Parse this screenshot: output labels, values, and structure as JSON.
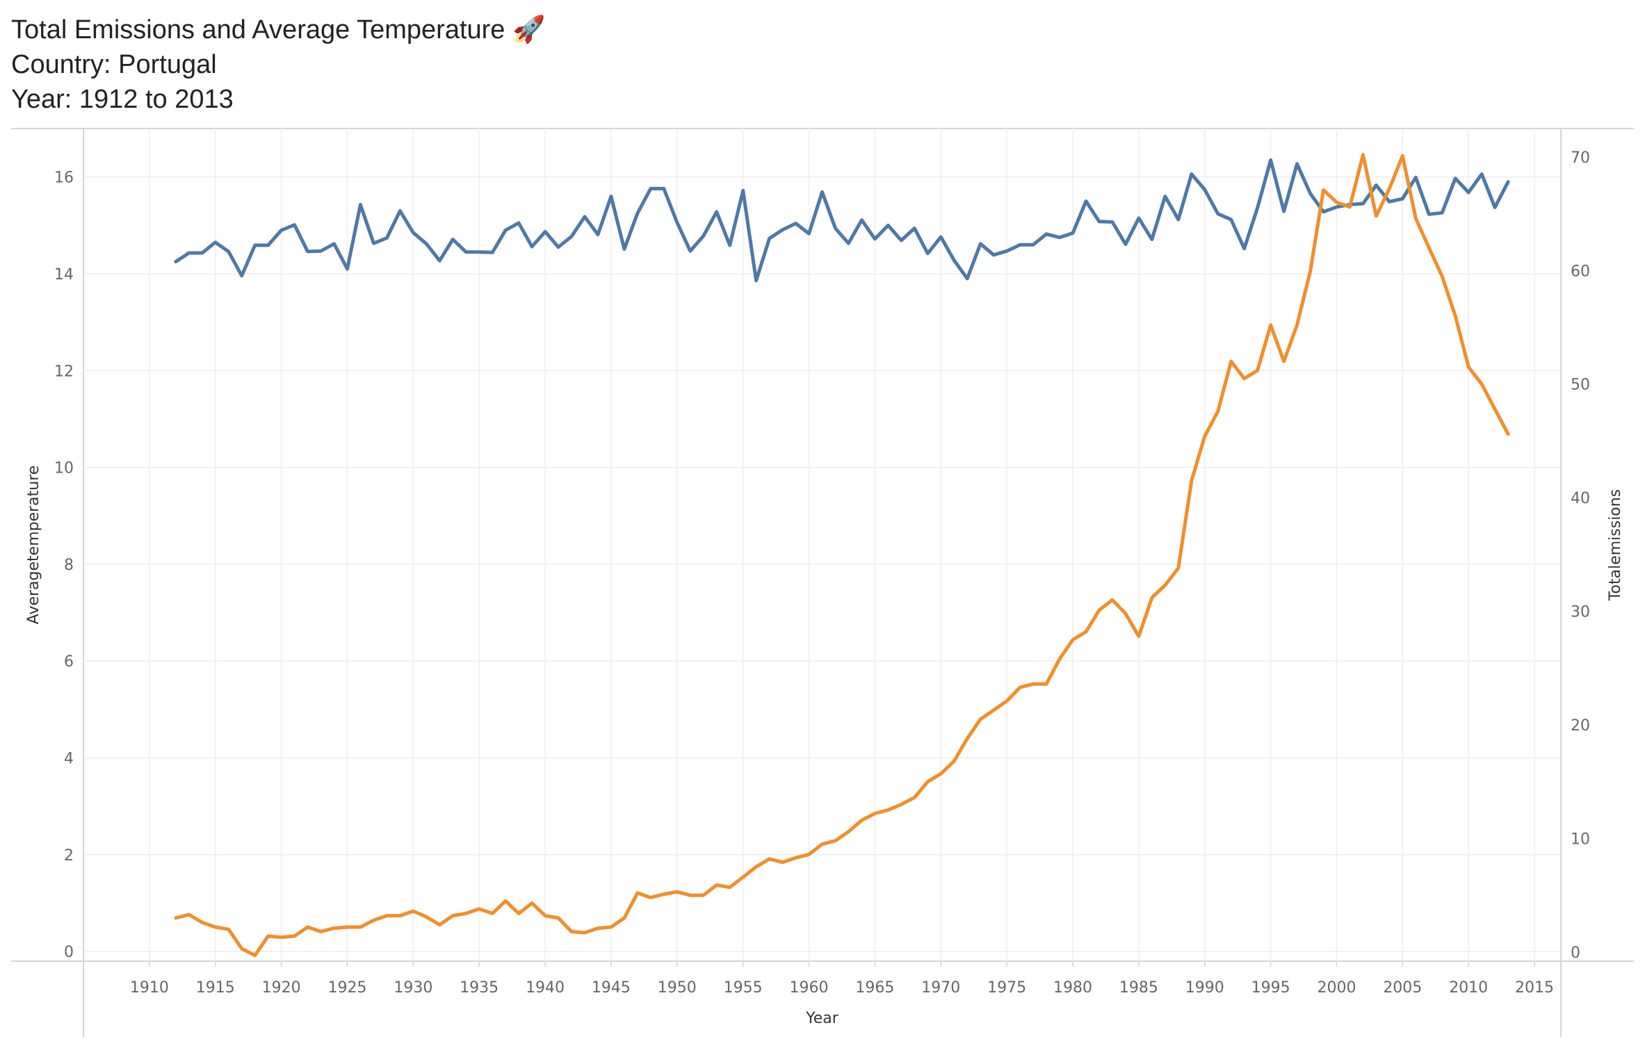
{
  "header": {
    "title": "Total Emissions and Average Temperature 🚀",
    "subtitle_country": "Country: Portugal",
    "subtitle_years": "Year: 1912 to 2013"
  },
  "chart_data": {
    "type": "line",
    "xlabel": "Year",
    "ylabel_left": "Averagetemperature",
    "ylabel_right": "Totalemissions",
    "xlim": [
      1905,
      2017
    ],
    "ylim_left": [
      -0.2,
      17.0
    ],
    "ylim_right": [
      -0.8,
      72.5
    ],
    "x_ticks": [
      1910,
      1915,
      1920,
      1925,
      1930,
      1935,
      1940,
      1945,
      1950,
      1955,
      1960,
      1965,
      1970,
      1975,
      1980,
      1985,
      1990,
      1995,
      2000,
      2005,
      2010,
      2015
    ],
    "y_ticks_left": [
      0,
      2,
      4,
      6,
      8,
      10,
      12,
      14,
      16
    ],
    "y_ticks_right": [
      0,
      10,
      20,
      30,
      40,
      50,
      60,
      70
    ],
    "grid": true,
    "colors": {
      "temperature": "#4e79a7",
      "emissions": "#f28e2b"
    },
    "x": [
      1912,
      1913,
      1914,
      1915,
      1916,
      1917,
      1918,
      1919,
      1920,
      1921,
      1922,
      1923,
      1924,
      1925,
      1926,
      1927,
      1928,
      1929,
      1930,
      1931,
      1932,
      1933,
      1934,
      1935,
      1936,
      1937,
      1938,
      1939,
      1940,
      1941,
      1942,
      1943,
      1944,
      1945,
      1946,
      1947,
      1948,
      1949,
      1950,
      1951,
      1952,
      1953,
      1954,
      1955,
      1956,
      1957,
      1958,
      1959,
      1960,
      1961,
      1962,
      1963,
      1964,
      1965,
      1966,
      1967,
      1968,
      1969,
      1970,
      1971,
      1972,
      1973,
      1974,
      1975,
      1976,
      1977,
      1978,
      1979,
      1980,
      1981,
      1982,
      1983,
      1984,
      1985,
      1986,
      1987,
      1988,
      1989,
      1990,
      1991,
      1992,
      1993,
      1994,
      1995,
      1996,
      1997,
      1998,
      1999,
      2000,
      2001,
      2002,
      2003,
      2004,
      2005,
      2006,
      2007,
      2008,
      2009,
      2010,
      2011,
      2012,
      2013
    ],
    "series": [
      {
        "axis": "left",
        "values": [
          14.25,
          14.43,
          14.43,
          14.65,
          14.46,
          13.96,
          14.59,
          14.59,
          14.9,
          15.01,
          14.46,
          14.47,
          14.62,
          14.1,
          15.43,
          14.63,
          14.74,
          15.3,
          14.85,
          14.62,
          14.27,
          14.71,
          14.45,
          14.45,
          14.44,
          14.9,
          15.05,
          14.56,
          14.87,
          14.55,
          14.77,
          15.18,
          14.81,
          15.6,
          14.51,
          15.25,
          15.76,
          15.76,
          15.06,
          14.47,
          14.78,
          15.28,
          14.59,
          15.72,
          13.86,
          14.73,
          14.91,
          15.04,
          14.83,
          15.69,
          14.94,
          14.63,
          15.11,
          14.72,
          15.0,
          14.69,
          14.94,
          14.42,
          14.76,
          14.28,
          13.9,
          14.62,
          14.39,
          14.47,
          14.6,
          14.6,
          14.82,
          14.75,
          14.84,
          15.5,
          15.08,
          15.07,
          14.61,
          15.15,
          14.71,
          15.6,
          15.12,
          16.06,
          15.74,
          15.24,
          15.12,
          14.52,
          15.36,
          16.35,
          15.29,
          16.27,
          15.66,
          15.28,
          15.38,
          15.43,
          15.45,
          15.83,
          15.49,
          15.55,
          15.99,
          15.23,
          15.26,
          15.97,
          15.68,
          16.06,
          15.37,
          15.9
        ]
      },
      {
        "axis": "right",
        "values": [
          3.0,
          3.3,
          2.6,
          2.2,
          2.0,
          0.3,
          -0.3,
          1.4,
          1.3,
          1.4,
          2.2,
          1.8,
          2.1,
          2.2,
          2.2,
          2.8,
          3.2,
          3.2,
          3.6,
          3.1,
          2.4,
          3.2,
          3.4,
          3.8,
          3.4,
          4.5,
          3.4,
          4.3,
          3.2,
          3.0,
          1.8,
          1.7,
          2.1,
          2.2,
          3.0,
          5.2,
          4.8,
          5.1,
          5.3,
          5.0,
          5.0,
          5.9,
          5.7,
          6.6,
          7.5,
          8.2,
          7.9,
          8.3,
          8.6,
          9.5,
          9.8,
          10.6,
          11.6,
          12.2,
          12.5,
          13.0,
          13.6,
          15.0,
          15.7,
          16.8,
          18.8,
          20.5,
          21.3,
          22.1,
          23.3,
          23.6,
          23.6,
          25.8,
          27.5,
          28.2,
          30.1,
          31.0,
          29.8,
          27.8,
          31.2,
          32.3,
          33.8,
          41.5,
          45.4,
          47.6,
          52.0,
          50.5,
          51.2,
          55.2,
          52.0,
          55.2,
          59.9,
          67.1,
          66.0,
          65.6,
          70.2,
          64.8,
          67.2,
          70.1,
          64.6,
          62.0,
          59.5,
          56.0,
          51.5,
          50.0,
          47.8,
          45.6
        ]
      }
    ]
  }
}
